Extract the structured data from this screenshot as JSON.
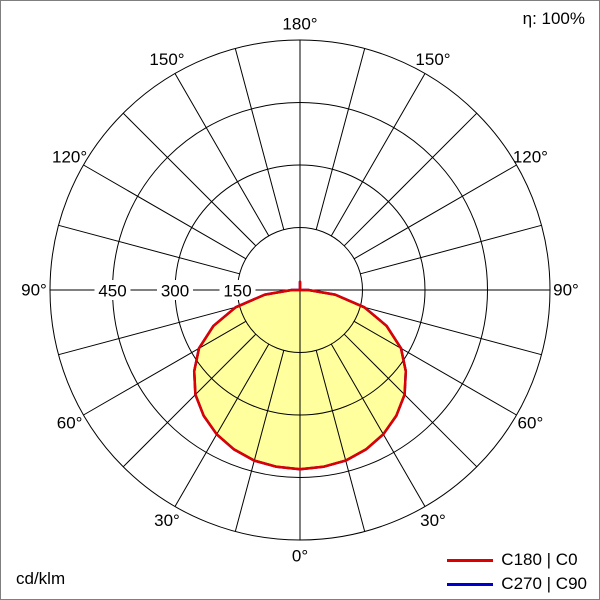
{
  "header": {
    "efficiency_label": "η: 100%"
  },
  "footer": {
    "unit_label": "cd/klm"
  },
  "legend": {
    "items": [
      {
        "label": "C180 | C0",
        "color": "#dd0000"
      },
      {
        "label": "C270 | C90",
        "color": "#0000cc"
      }
    ]
  },
  "chart_data": {
    "type": "polar",
    "unit": "cd/klm",
    "angle_step_deg": 15,
    "angle_labels_deg": [
      0,
      30,
      60,
      90,
      120,
      150,
      180
    ],
    "radial_ticks": [
      150,
      300,
      450
    ],
    "radial_max": 600,
    "grid_color": "#000000",
    "background_color": "#ffffff",
    "series": [
      {
        "name": "C270 | C90",
        "color": "#0000cc",
        "fill": "none",
        "gamma_deg": [
          0,
          7.5,
          15,
          22.5,
          30,
          37.5,
          45,
          52.5,
          60,
          67.5,
          75,
          82.5,
          90,
          105,
          120,
          135,
          150,
          165,
          180
        ],
        "values": [
          430,
          428,
          424,
          414,
          400,
          380,
          355,
          320,
          280,
          225,
          160,
          85,
          20,
          0,
          0,
          0,
          0,
          0,
          20
        ]
      },
      {
        "name": "C180 | C0",
        "color": "#dd0000",
        "fill": "#ffff9e",
        "gamma_deg": [
          0,
          7.5,
          15,
          22.5,
          30,
          37.5,
          45,
          52.5,
          60,
          67.5,
          75,
          82.5,
          90,
          105,
          120,
          135,
          150,
          165,
          180
        ],
        "values": [
          430,
          428,
          424,
          414,
          400,
          380,
          355,
          320,
          280,
          225,
          160,
          85,
          20,
          0,
          0,
          0,
          0,
          0,
          20
        ]
      }
    ]
  }
}
